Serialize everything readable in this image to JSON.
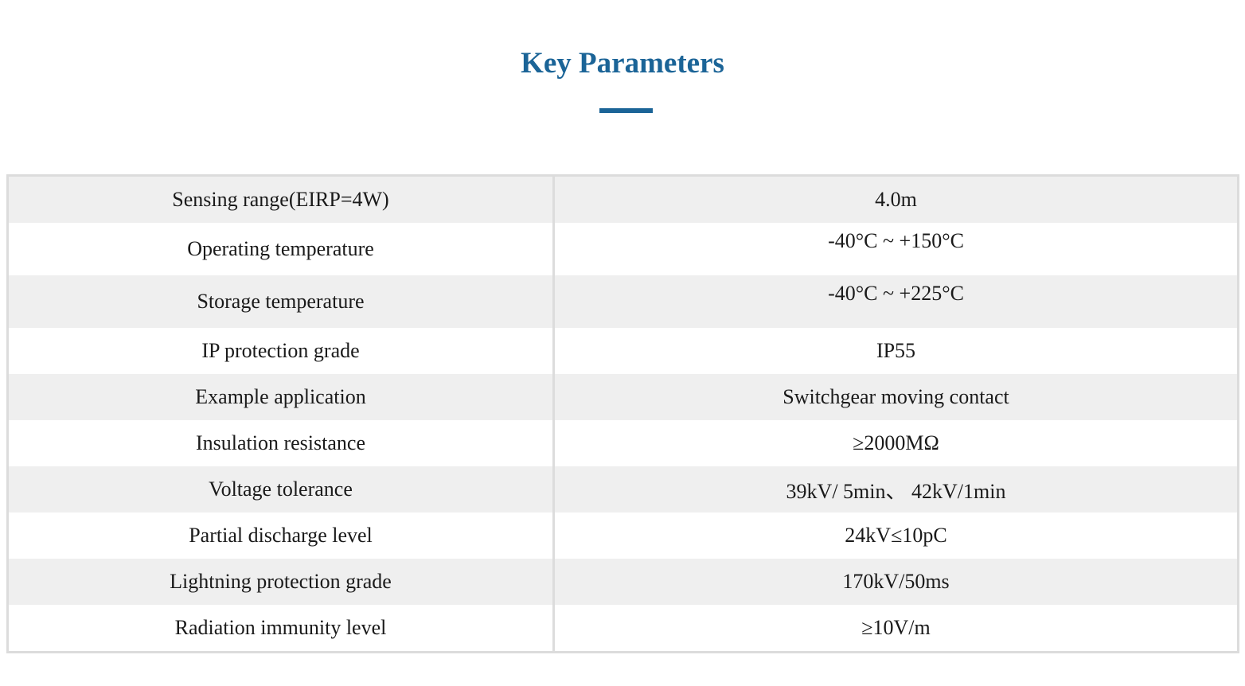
{
  "page": {
    "title": "Key Parameters",
    "accent_color": "#1b6497",
    "stripe_color": "#efefef",
    "border_color": "#dcdcdc"
  },
  "parameters": [
    {
      "label": "Sensing range(EIRP=4W)",
      "value": "4.0m"
    },
    {
      "label": "Operating temperature",
      "value": "-40°C ~ +150°C"
    },
    {
      "label": "Storage temperature",
      "value": "-40°C ~ +225°C"
    },
    {
      "label": "IP protection grade",
      "value": "IP55"
    },
    {
      "label": "Example application",
      "value": "Switchgear moving contact"
    },
    {
      "label": "Insulation resistance",
      "value": "≥2000MΩ"
    },
    {
      "label": "Voltage tolerance",
      "value": "39kV/ 5min、 42kV/1min"
    },
    {
      "label": "Partial discharge level",
      "value": "24kV≤10pC"
    },
    {
      "label": "Lightning protection grade",
      "value": "170kV/50ms"
    },
    {
      "label": "Radiation immunity level",
      "value": "≥10V/m"
    }
  ]
}
